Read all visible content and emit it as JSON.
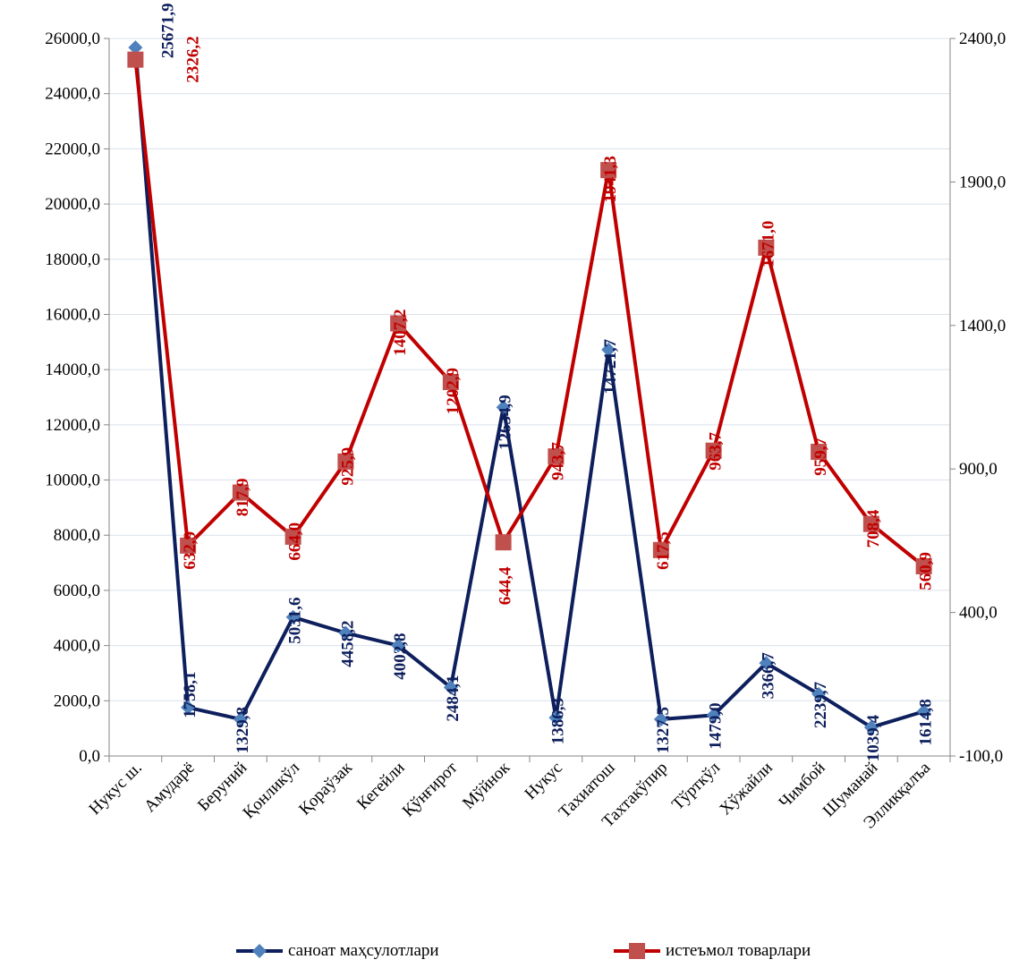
{
  "chart_data": {
    "type": "line",
    "categories": [
      "Нукус ш.",
      "Амударё",
      "Беруний",
      "Қонликўл",
      "Қораўзак",
      "Кегейли",
      "Қўнғирот",
      "Мўйнок",
      "Нукус",
      "Тахиатош",
      "Тахтакўпир",
      "Тўрткўл",
      "Хўжайли",
      "Чимбой",
      "Шуманай",
      "Элликқалъа"
    ],
    "series": [
      {
        "name": "саноат маҳсулотлари",
        "axis": "left",
        "color": "#0d1f5c",
        "marker_color": "#4f81bd",
        "marker": "diamond",
        "values": [
          25671.9,
          1758.1,
          1329.8,
          5031.6,
          4458.2,
          4002.8,
          2484.1,
          12634.9,
          1386.3,
          14721.7,
          1327.5,
          1479.0,
          3366.7,
          2239.7,
          1039.4,
          1614.8
        ],
        "labels": [
          "25671,9",
          "1758,1",
          "1329,8",
          "5031,6",
          "4458,2",
          "4002,8",
          "2484,1",
          "12634,9",
          "1386,3",
          "14721,7",
          "1327,5",
          "1479,0",
          "3366,7",
          "2239,7",
          "1039,4",
          "1614,8"
        ]
      },
      {
        "name": "истеъмол товарлари",
        "axis": "right",
        "color": "#c00000",
        "marker_color": "#c0504d",
        "marker": "square",
        "values": [
          2326.2,
          632.9,
          817.9,
          664.0,
          925.9,
          1407.2,
          1202.9,
          644.4,
          943.7,
          1941.3,
          617.5,
          963.7,
          1671.0,
          959.7,
          708.4,
          560.9
        ],
        "labels": [
          "2326,2",
          "632,9",
          "817,9",
          "664,0",
          "925,9",
          "1407,2",
          "1202,9",
          "644,4",
          "943,7",
          "1941,3",
          "617,5",
          "963,7",
          "1671,0",
          "959,7",
          "708,4",
          "560,9"
        ]
      }
    ],
    "y_left": {
      "min": 0,
      "max": 26000,
      "step": 2000,
      "ticks": [
        "0,0",
        "2000,0",
        "4000,0",
        "6000,0",
        "8000,0",
        "10000,0",
        "12000,0",
        "14000,0",
        "16000,0",
        "18000,0",
        "20000,0",
        "22000,0",
        "24000,0",
        "26000,0"
      ]
    },
    "y_right": {
      "min": -100,
      "max": 2400,
      "step": 500,
      "ticks": [
        "-100,0",
        "400,0",
        "900,0",
        "1400,0",
        "1900,0",
        "2400,0"
      ]
    },
    "grid": true,
    "legend": "bottom",
    "gridline_color": "#d9e1ec"
  },
  "legend": {
    "series1": "саноат маҳсулотлари",
    "series2": "истеъмол товарлари"
  }
}
